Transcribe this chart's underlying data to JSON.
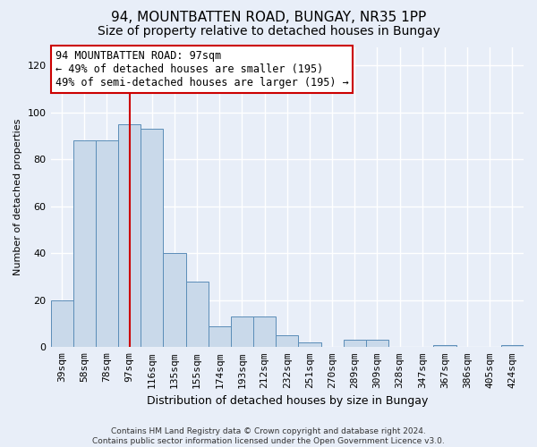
{
  "title": "94, MOUNTBATTEN ROAD, BUNGAY, NR35 1PP",
  "subtitle": "Size of property relative to detached houses in Bungay",
  "xlabel": "Distribution of detached houses by size in Bungay",
  "ylabel": "Number of detached properties",
  "categories": [
    "39sqm",
    "58sqm",
    "78sqm",
    "97sqm",
    "116sqm",
    "135sqm",
    "155sqm",
    "174sqm",
    "193sqm",
    "212sqm",
    "232sqm",
    "251sqm",
    "270sqm",
    "289sqm",
    "309sqm",
    "328sqm",
    "347sqm",
    "367sqm",
    "386sqm",
    "405sqm",
    "424sqm"
  ],
  "values": [
    20,
    88,
    88,
    95,
    93,
    40,
    28,
    9,
    13,
    13,
    5,
    2,
    0,
    3,
    3,
    0,
    0,
    1,
    0,
    0,
    1
  ],
  "bar_color": "#c9d9ea",
  "bar_edge_color": "#5b8db8",
  "vline_x_index": 3,
  "vline_color": "#cc0000",
  "annotation_line1": "94 MOUNTBATTEN ROAD: 97sqm",
  "annotation_line2": "← 49% of detached houses are smaller (195)",
  "annotation_line3": "49% of semi-detached houses are larger (195) →",
  "annotation_box_color": "#ffffff",
  "annotation_edge_color": "#cc0000",
  "ylim": [
    0,
    128
  ],
  "yticks": [
    0,
    20,
    40,
    60,
    80,
    100,
    120
  ],
  "background_color": "#e8eef8",
  "plot_bg_color": "#e8eef8",
  "grid_color": "#ffffff",
  "footer": "Contains HM Land Registry data © Crown copyright and database right 2024.\nContains public sector information licensed under the Open Government Licence v3.0.",
  "title_fontsize": 11,
  "subtitle_fontsize": 10,
  "xlabel_fontsize": 9,
  "ylabel_fontsize": 8,
  "tick_fontsize": 8,
  "annotation_fontsize": 8.5,
  "footer_fontsize": 6.5
}
